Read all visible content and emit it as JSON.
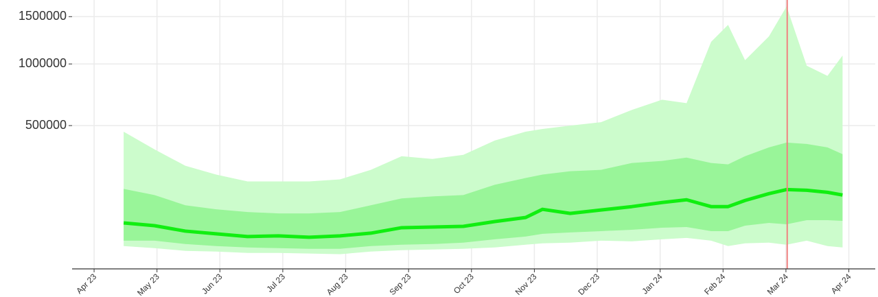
{
  "chart_data": {
    "type": "fan",
    "x": [
      0.47,
      0.96,
      1.45,
      1.94,
      2.44,
      2.93,
      3.42,
      3.91,
      4.4,
      4.89,
      5.38,
      5.87,
      6.37,
      6.86,
      7.13,
      7.57,
      8.06,
      8.55,
      9.03,
      9.42,
      9.81,
      10.08,
      10.35,
      10.73,
      11.01,
      11.33,
      11.66,
      11.9
    ],
    "bands": [
      {
        "color": "#ccfccc",
        "lower": [
          18110,
          15600,
          12520,
          11820,
          10450,
          10450,
          9800,
          9170,
          11820,
          13270,
          14020,
          14790,
          16410,
          19880,
          21760,
          22740,
          25760,
          24710,
          27860,
          30070,
          25760,
          18110,
          21760,
          22740,
          19880,
          25760,
          18110,
          16410
        ],
        "upper": [
          459800,
          352800,
          266600,
          224900,
          195300,
          195300,
          195300,
          204000,
          246900,
          315400,
          301000,
          322700,
          404500,
          459800,
          477500,
          500100,
          523200,
          610900,
          689100,
          662500,
          1221000,
          1406000,
          1036000,
          1279000,
          1621000,
          983700,
          889800,
          1082000
        ]
      },
      {
        "color": "#99f599",
        "lower": [
          25760,
          25760,
          20820,
          18110,
          16410,
          15600,
          14790,
          14790,
          18110,
          19880,
          20820,
          22740,
          27860,
          32360,
          37170,
          39700,
          42310,
          45030,
          49250,
          50700,
          42310,
          42310,
          53640,
          59830,
          56690,
          66300,
          66300,
          64660
        ],
        "upper": [
          165100,
          142300,
          108000,
          95650,
          87800,
          84030,
          84030,
          87800,
          108000,
          130300,
          137400,
          142300,
          181300,
          209800,
          224900,
          240500,
          246900,
          280100,
          290500,
          308200,
          280100,
          273300,
          315400,
          364400,
          392300,
          384200,
          364400,
          326400
        ]
      }
    ],
    "series": [
      {
        "color": "#11ee11",
        "values": [
          59830,
          53640,
          42310,
          37170,
          32360,
          33520,
          31190,
          33520,
          38420,
          49250,
          50700,
          52160,
          63020,
          73130,
          95650,
          84030,
          93650,
          103800,
          116700,
          125700,
          103800,
          103800,
          123400,
          147200,
          162500,
          159900,
          152200,
          142300
        ]
      }
    ],
    "vline": {
      "x": 11.02,
      "color": "#f08080"
    },
    "scale": "sqrt",
    "xlim": [
      -0.35,
      12.42
    ],
    "xticks": [
      {
        "value": 0,
        "label": "Apr 23"
      },
      {
        "value": 1,
        "label": "May 23"
      },
      {
        "value": 2,
        "label": "Jun 23"
      },
      {
        "value": 3,
        "label": "Jul 23"
      },
      {
        "value": 4,
        "label": "Aug 23"
      },
      {
        "value": 5,
        "label": "Sep 23"
      },
      {
        "value": 6,
        "label": "Oct 23"
      },
      {
        "value": 7,
        "label": "Nov 23"
      },
      {
        "value": 8,
        "label": "Dec 23"
      },
      {
        "value": 9,
        "label": "Jan 24"
      },
      {
        "value": 10,
        "label": "Feb 24"
      },
      {
        "value": 11,
        "label": "Mar 24"
      },
      {
        "value": 12,
        "label": "Apr 24"
      }
    ],
    "ylim": [
      690,
      1700000
    ],
    "yticks": [
      500000,
      1000000,
      1500000
    ],
    "grid": true
  }
}
